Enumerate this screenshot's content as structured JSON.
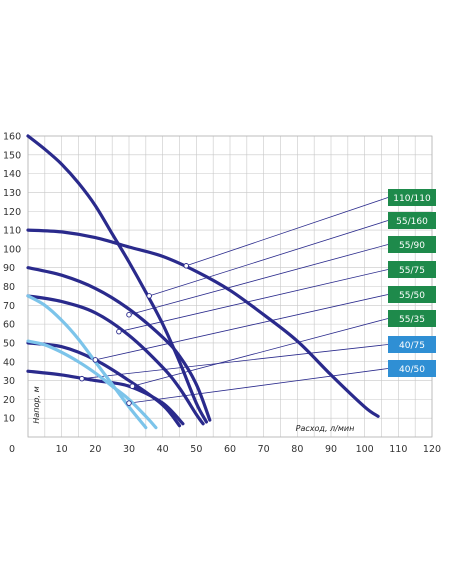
{
  "chart_data": {
    "type": "line",
    "title": "",
    "xlabel": "Расход, л/мин",
    "ylabel": "Напор, м",
    "xlim": [
      0,
      120
    ],
    "ylim": [
      0,
      160
    ],
    "x_ticks": [
      "0",
      "10",
      "20",
      "30",
      "40",
      "50",
      "60",
      "70",
      "80",
      "90",
      "100",
      "110",
      "120"
    ],
    "y_ticks": [
      "10",
      "20",
      "30",
      "40",
      "50",
      "60",
      "70",
      "80",
      "90",
      "100",
      "110",
      "120",
      "130",
      "140",
      "150",
      "160"
    ],
    "grid": true,
    "legend_position": "right",
    "colors": {
      "dark": "#2a2a8c",
      "light": "#7cc4ea",
      "green": "#1e8a4b",
      "blue": "#2f8fd4",
      "grid": "#c8c8c8"
    },
    "series": [
      {
        "name": "110/110",
        "color": "#2a2a8c",
        "badge": "#1e8a4b",
        "marker": [
          47,
          91
        ],
        "points": [
          [
            0,
            110
          ],
          [
            10,
            109
          ],
          [
            20,
            106
          ],
          [
            30,
            101
          ],
          [
            40,
            96
          ],
          [
            50,
            88
          ],
          [
            60,
            78
          ],
          [
            70,
            65
          ],
          [
            80,
            51
          ],
          [
            90,
            33
          ],
          [
            100,
            16
          ],
          [
            104,
            11
          ]
        ]
      },
      {
        "name": "55/160",
        "color": "#2a2a8c",
        "badge": "#1e8a4b",
        "marker": [
          36,
          75
        ],
        "points": [
          [
            0,
            160
          ],
          [
            5,
            153
          ],
          [
            10,
            145
          ],
          [
            15,
            135
          ],
          [
            20,
            123
          ],
          [
            25,
            108
          ],
          [
            30,
            93
          ],
          [
            35,
            77
          ],
          [
            40,
            60
          ],
          [
            45,
            40
          ],
          [
            50,
            18
          ],
          [
            53,
            8
          ]
        ]
      },
      {
        "name": "55/90",
        "color": "#2a2a8c",
        "badge": "#1e8a4b",
        "marker": [
          30,
          65
        ],
        "points": [
          [
            0,
            90
          ],
          [
            10,
            86
          ],
          [
            20,
            79
          ],
          [
            30,
            68
          ],
          [
            40,
            53
          ],
          [
            45,
            43
          ],
          [
            50,
            28
          ],
          [
            54,
            9
          ]
        ]
      },
      {
        "name": "55/75",
        "color": "#2a2a8c",
        "badge": "#1e8a4b",
        "marker": [
          27,
          56
        ],
        "points": [
          [
            0,
            75
          ],
          [
            10,
            72
          ],
          [
            20,
            66
          ],
          [
            30,
            54
          ],
          [
            40,
            37
          ],
          [
            45,
            26
          ],
          [
            50,
            12
          ],
          [
            52,
            7
          ]
        ]
      },
      {
        "name": "55/50",
        "color": "#2a2a8c",
        "badge": "#1e8a4b",
        "marker": [
          20,
          41
        ],
        "points": [
          [
            0,
            50
          ],
          [
            10,
            48
          ],
          [
            20,
            41
          ],
          [
            30,
            30
          ],
          [
            40,
            17
          ],
          [
            45,
            6
          ]
        ]
      },
      {
        "name": "55/35",
        "color": "#2a2a8c",
        "badge": "#1e8a4b",
        "marker": [
          31,
          27
        ],
        "points": [
          [
            0,
            35
          ],
          [
            10,
            33
          ],
          [
            20,
            30
          ],
          [
            30,
            27
          ],
          [
            40,
            18
          ],
          [
            46,
            7
          ]
        ]
      },
      {
        "name": "40/75",
        "color": "#7cc4ea",
        "badge": "#2f8fd4",
        "marker": [
          16,
          31
        ],
        "points": [
          [
            0,
            75
          ],
          [
            5,
            70
          ],
          [
            10,
            62
          ],
          [
            15,
            52
          ],
          [
            20,
            40
          ],
          [
            25,
            28
          ],
          [
            30,
            16
          ],
          [
            35,
            5
          ]
        ]
      },
      {
        "name": "40/50",
        "color": "#7cc4ea",
        "badge": "#2f8fd4",
        "marker": [
          30,
          18
        ],
        "points": [
          [
            0,
            51
          ],
          [
            5,
            49
          ],
          [
            10,
            45
          ],
          [
            15,
            40
          ],
          [
            20,
            34
          ],
          [
            25,
            27
          ],
          [
            30,
            20
          ],
          [
            35,
            11
          ],
          [
            38,
            5
          ]
        ]
      }
    ]
  }
}
